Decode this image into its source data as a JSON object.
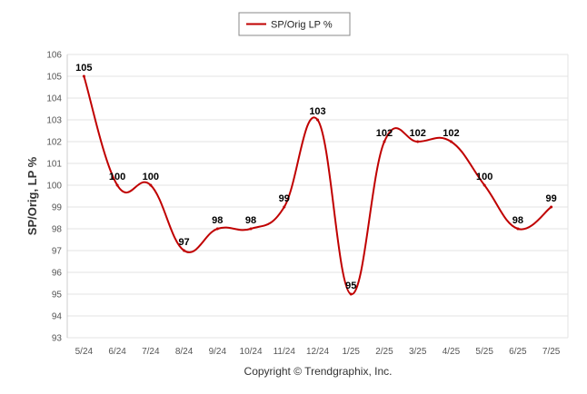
{
  "chart_data": {
    "type": "line",
    "categories": [
      "5/24",
      "6/24",
      "7/24",
      "8/24",
      "9/24",
      "10/24",
      "11/24",
      "12/24",
      "1/25",
      "2/25",
      "3/25",
      "4/25",
      "5/25",
      "6/25",
      "7/25"
    ],
    "series": [
      {
        "name": "SP/Orig LP %",
        "values": [
          105,
          100,
          100,
          97,
          98,
          98,
          99,
          103,
          95,
          102,
          102,
          102,
          100,
          98,
          99
        ],
        "color": "#c00000"
      }
    ],
    "ylabel": "SP/Orig, LP %",
    "xlabel": "",
    "ylim": [
      93,
      106
    ],
    "yticks": [
      93,
      94,
      95,
      96,
      97,
      98,
      99,
      100,
      101,
      102,
      103,
      104,
      105,
      106
    ],
    "grid": true,
    "legend_position": "top-center",
    "data_labels": true
  },
  "footer": {
    "copyright": "Copyright © Trendgraphix, Inc."
  }
}
